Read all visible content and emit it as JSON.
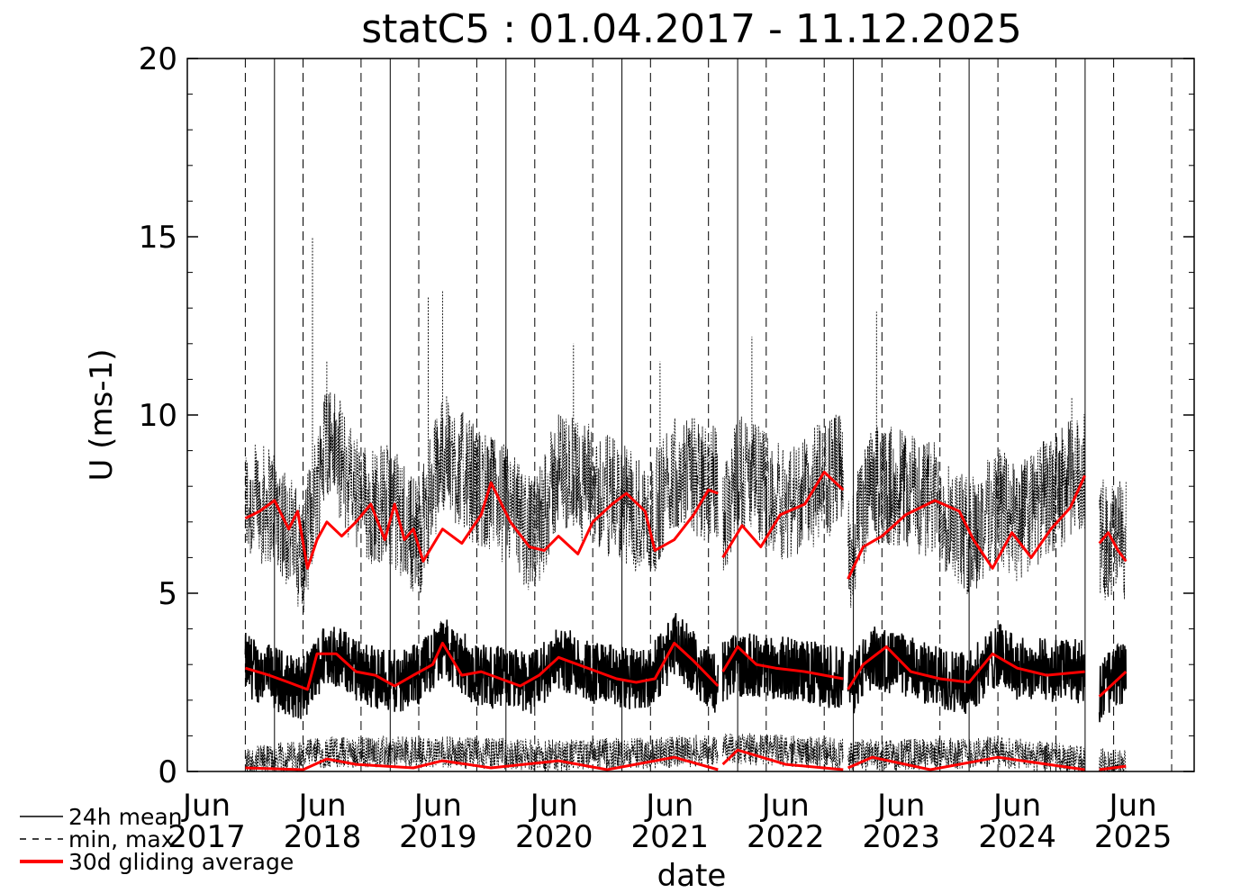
{
  "chart_data": {
    "type": "line",
    "title": "statC5 : 01.04.2017 - 11.12.2025",
    "xlabel": "date",
    "ylabel": "U (ms-1)",
    "ylim": [
      0,
      20
    ],
    "xlim": [
      "2017-04-01",
      "2025-12-11"
    ],
    "yticks": [
      "0",
      "5",
      "10",
      "15",
      "20"
    ],
    "xticks": [
      {
        "month": "Jun",
        "year": "2017",
        "date": "2017-06-01"
      },
      {
        "month": "Jun",
        "year": "2018",
        "date": "2018-06-01"
      },
      {
        "month": "Jun",
        "year": "2019",
        "date": "2019-06-01"
      },
      {
        "month": "Jun",
        "year": "2020",
        "date": "2020-06-01"
      },
      {
        "month": "Jun",
        "year": "2021",
        "date": "2021-06-01"
      },
      {
        "month": "Jun",
        "year": "2022",
        "date": "2022-06-01"
      },
      {
        "month": "Jun",
        "year": "2023",
        "date": "2023-06-01"
      },
      {
        "month": "Jun",
        "year": "2024",
        "date": "2024-06-01"
      },
      {
        "month": "Jun",
        "year": "2025",
        "date": "2025-06-01"
      }
    ],
    "grid": "vertical lines: solid at January, dashed at April and October",
    "legend_position": "bottom-left",
    "legend": [
      "24h mean",
      "min, max",
      "30d gliding average"
    ],
    "colors": {
      "mean": "#000000",
      "minmax": "#000000",
      "average": "#ff0000"
    },
    "data_segments": [
      {
        "start": "2017-10-01",
        "end": "2021-10-31"
      },
      {
        "start": "2021-11-15",
        "end": "2022-11-30"
      },
      {
        "start": "2022-12-15",
        "end": "2024-12-31"
      },
      {
        "start": "2025-02-15",
        "end": "2025-05-10"
      }
    ],
    "series": [
      {
        "name": "24h mean",
        "description": "daily mean wind speed, noisy band around 2-5",
        "points": [
          [
            "2017-10-01",
            3.0
          ],
          [
            "2018-01-01",
            2.6
          ],
          [
            "2018-04-01",
            2.3
          ],
          [
            "2018-06-15",
            3.4
          ],
          [
            "2018-10-01",
            2.8
          ],
          [
            "2019-01-01",
            2.5
          ],
          [
            "2019-04-01",
            2.7
          ],
          [
            "2019-06-15",
            3.5
          ],
          [
            "2019-10-01",
            2.7
          ],
          [
            "2020-01-01",
            2.6
          ],
          [
            "2020-04-01",
            2.5
          ],
          [
            "2020-06-15",
            3.2
          ],
          [
            "2020-10-01",
            2.8
          ],
          [
            "2021-01-01",
            2.6
          ],
          [
            "2021-04-01",
            2.6
          ],
          [
            "2021-06-15",
            3.6
          ],
          [
            "2021-10-31",
            2.4
          ],
          [
            "2021-11-15",
            2.8
          ],
          [
            "2022-01-01",
            3.0
          ],
          [
            "2022-06-01",
            2.9
          ],
          [
            "2022-11-30",
            2.6
          ],
          [
            "2022-12-15",
            2.3
          ],
          [
            "2023-03-01",
            3.2
          ],
          [
            "2023-06-01",
            3.0
          ],
          [
            "2023-10-01",
            2.6
          ],
          [
            "2024-01-01",
            2.5
          ],
          [
            "2024-04-01",
            3.3
          ],
          [
            "2024-06-01",
            2.9
          ],
          [
            "2024-12-31",
            2.8
          ],
          [
            "2025-02-15",
            2.2
          ],
          [
            "2025-05-10",
            2.9
          ]
        ]
      },
      {
        "name": "min, max",
        "description": "daily max mostly 5-10 with peaks up to about 15; daily min near 0-1",
        "max_points": [
          [
            "2017-10-01",
            7.5
          ],
          [
            "2018-01-01",
            7.5
          ],
          [
            "2018-04-01",
            6.0
          ],
          [
            "2018-06-15",
            9.5
          ],
          [
            "2018-10-01",
            7.5
          ],
          [
            "2019-01-01",
            7.5
          ],
          [
            "2019-04-01",
            6.5
          ],
          [
            "2019-06-15",
            9.0
          ],
          [
            "2019-10-01",
            8.0
          ],
          [
            "2020-01-01",
            7.5
          ],
          [
            "2020-04-01",
            6.5
          ],
          [
            "2020-06-15",
            8.5
          ],
          [
            "2020-10-01",
            8.0
          ],
          [
            "2021-01-01",
            7.5
          ],
          [
            "2021-04-01",
            7.0
          ],
          [
            "2021-06-15",
            8.5
          ],
          [
            "2021-10-31",
            8.0
          ],
          [
            "2021-11-15",
            7.0
          ],
          [
            "2022-01-01",
            8.5
          ],
          [
            "2022-06-01",
            7.5
          ],
          [
            "2022-11-30",
            8.5
          ],
          [
            "2022-12-15",
            6.0
          ],
          [
            "2023-03-01",
            8.0
          ],
          [
            "2023-06-01",
            8.0
          ],
          [
            "2023-10-01",
            7.5
          ],
          [
            "2024-01-01",
            6.5
          ],
          [
            "2024-04-01",
            7.5
          ],
          [
            "2024-06-01",
            7.0
          ],
          [
            "2024-12-31",
            8.5
          ],
          [
            "2025-02-15",
            6.5
          ],
          [
            "2025-05-10",
            6.5
          ]
        ],
        "min_points": [
          [
            "2017-10-01",
            0.2
          ],
          [
            "2018-06-15",
            0.5
          ],
          [
            "2019-06-15",
            0.5
          ],
          [
            "2020-06-15",
            0.4
          ],
          [
            "2021-06-15",
            0.5
          ],
          [
            "2022-01-01",
            0.6
          ],
          [
            "2023-03-01",
            0.4
          ],
          [
            "2024-04-01",
            0.5
          ],
          [
            "2025-05-10",
            0.1
          ]
        ],
        "peaks": [
          [
            "2018-05-01",
            15.0
          ],
          [
            "2019-06-15",
            13.5
          ],
          [
            "2019-05-01",
            13.3
          ],
          [
            "2020-08-01",
            12.0
          ],
          [
            "2021-05-01",
            11.5
          ],
          [
            "2022-02-15",
            12.2
          ],
          [
            "2023-03-15",
            12.9
          ],
          [
            "2018-06-15",
            11.5
          ],
          [
            "2024-11-20",
            10.5
          ]
        ]
      },
      {
        "name": "30d gliding average",
        "description": "30-day running averages of daily max, daily mean and daily min",
        "max_avg": [
          [
            "2017-10-01",
            7.1
          ],
          [
            "2017-11-15",
            7.3
          ],
          [
            "2018-01-01",
            7.6
          ],
          [
            "2018-02-15",
            6.8
          ],
          [
            "2018-03-15",
            7.3
          ],
          [
            "2018-04-15",
            5.7
          ],
          [
            "2018-05-15",
            6.5
          ],
          [
            "2018-06-15",
            7.0
          ],
          [
            "2018-08-01",
            6.6
          ],
          [
            "2018-09-15",
            7.0
          ],
          [
            "2018-11-01",
            7.5
          ],
          [
            "2018-12-15",
            6.5
          ],
          [
            "2019-01-15",
            7.5
          ],
          [
            "2019-02-15",
            6.5
          ],
          [
            "2019-03-15",
            6.8
          ],
          [
            "2019-04-15",
            5.9
          ],
          [
            "2019-06-15",
            6.8
          ],
          [
            "2019-08-15",
            6.4
          ],
          [
            "2019-10-15",
            7.2
          ],
          [
            "2019-11-15",
            8.1
          ],
          [
            "2020-01-15",
            7.0
          ],
          [
            "2020-03-15",
            6.3
          ],
          [
            "2020-05-01",
            6.2
          ],
          [
            "2020-06-15",
            6.6
          ],
          [
            "2020-08-15",
            6.1
          ],
          [
            "2020-10-01",
            7.0
          ],
          [
            "2020-12-01",
            7.5
          ],
          [
            "2021-01-15",
            7.8
          ],
          [
            "2021-03-15",
            7.3
          ],
          [
            "2021-04-15",
            6.2
          ],
          [
            "2021-06-15",
            6.5
          ],
          [
            "2021-08-15",
            7.2
          ],
          [
            "2021-10-01",
            7.9
          ],
          [
            "2021-10-31",
            7.8
          ],
          [
            "2021-11-15",
            6.0
          ],
          [
            "2022-01-15",
            6.9
          ],
          [
            "2022-03-15",
            6.3
          ],
          [
            "2022-05-15",
            7.2
          ],
          [
            "2022-08-01",
            7.5
          ],
          [
            "2022-10-01",
            8.4
          ],
          [
            "2022-11-30",
            7.9
          ],
          [
            "2022-12-15",
            5.4
          ],
          [
            "2023-02-01",
            6.3
          ],
          [
            "2023-04-01",
            6.6
          ],
          [
            "2023-06-15",
            7.2
          ],
          [
            "2023-09-15",
            7.6
          ],
          [
            "2023-12-01",
            7.3
          ],
          [
            "2024-01-15",
            6.5
          ],
          [
            "2024-03-15",
            5.7
          ],
          [
            "2024-05-15",
            6.7
          ],
          [
            "2024-07-15",
            6.0
          ],
          [
            "2024-09-15",
            6.8
          ],
          [
            "2024-11-15",
            7.4
          ],
          [
            "2024-12-31",
            8.3
          ],
          [
            "2025-02-15",
            6.4
          ],
          [
            "2025-03-15",
            6.7
          ],
          [
            "2025-04-15",
            6.2
          ],
          [
            "2025-05-10",
            5.9
          ]
        ],
        "mean_avg": [
          [
            "2017-10-01",
            2.9
          ],
          [
            "2017-12-15",
            2.7
          ],
          [
            "2018-02-15",
            2.5
          ],
          [
            "2018-04-15",
            2.3
          ],
          [
            "2018-05-15",
            3.3
          ],
          [
            "2018-07-15",
            3.3
          ],
          [
            "2018-09-15",
            2.8
          ],
          [
            "2018-11-15",
            2.7
          ],
          [
            "2019-01-15",
            2.4
          ],
          [
            "2019-03-15",
            2.7
          ],
          [
            "2019-05-15",
            3.0
          ],
          [
            "2019-06-15",
            3.6
          ],
          [
            "2019-08-15",
            2.7
          ],
          [
            "2019-10-15",
            2.8
          ],
          [
            "2019-12-15",
            2.6
          ],
          [
            "2020-02-15",
            2.4
          ],
          [
            "2020-04-15",
            2.7
          ],
          [
            "2020-06-15",
            3.2
          ],
          [
            "2020-08-15",
            3.0
          ],
          [
            "2020-10-15",
            2.8
          ],
          [
            "2020-12-15",
            2.6
          ],
          [
            "2021-02-15",
            2.5
          ],
          [
            "2021-04-15",
            2.6
          ],
          [
            "2021-06-15",
            3.6
          ],
          [
            "2021-08-15",
            3.1
          ],
          [
            "2021-10-31",
            2.4
          ],
          [
            "2021-11-15",
            2.8
          ],
          [
            "2022-01-01",
            3.5
          ],
          [
            "2022-03-01",
            3.0
          ],
          [
            "2022-05-01",
            2.9
          ],
          [
            "2022-08-01",
            2.8
          ],
          [
            "2022-11-30",
            2.6
          ],
          [
            "2022-12-15",
            2.3
          ],
          [
            "2023-02-01",
            3.0
          ],
          [
            "2023-04-15",
            3.5
          ],
          [
            "2023-07-01",
            2.8
          ],
          [
            "2023-10-01",
            2.6
          ],
          [
            "2024-01-01",
            2.5
          ],
          [
            "2024-03-15",
            3.3
          ],
          [
            "2024-06-01",
            2.9
          ],
          [
            "2024-09-01",
            2.7
          ],
          [
            "2024-12-31",
            2.8
          ],
          [
            "2025-02-15",
            2.1
          ],
          [
            "2025-05-10",
            2.8
          ]
        ],
        "min_avg": [
          [
            "2017-10-01",
            0.1
          ],
          [
            "2018-04-01",
            0.05
          ],
          [
            "2018-06-15",
            0.35
          ],
          [
            "2018-09-15",
            0.2
          ],
          [
            "2019-03-15",
            0.1
          ],
          [
            "2019-06-15",
            0.3
          ],
          [
            "2019-11-15",
            0.1
          ],
          [
            "2020-06-15",
            0.3
          ],
          [
            "2020-11-15",
            0.05
          ],
          [
            "2021-06-15",
            0.4
          ],
          [
            "2021-10-31",
            0.05
          ],
          [
            "2021-11-15",
            0.2
          ],
          [
            "2022-01-01",
            0.6
          ],
          [
            "2022-06-01",
            0.2
          ],
          [
            "2022-11-30",
            0.05
          ],
          [
            "2022-12-15",
            0.1
          ],
          [
            "2023-03-01",
            0.4
          ],
          [
            "2023-09-01",
            0.05
          ],
          [
            "2024-04-01",
            0.4
          ],
          [
            "2024-12-31",
            0.05
          ],
          [
            "2025-02-15",
            0.05
          ],
          [
            "2025-05-10",
            0.15
          ]
        ]
      }
    ]
  }
}
